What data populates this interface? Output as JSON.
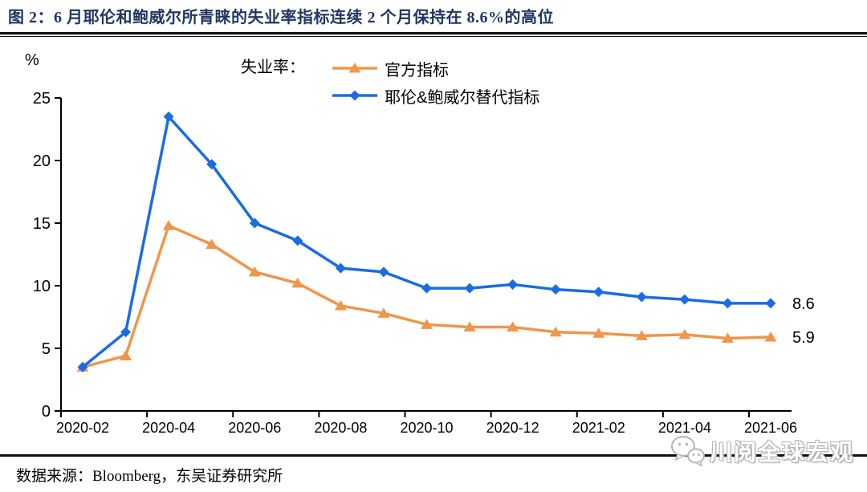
{
  "title": "图 2：6 月耶伦和鲍威尔所青睐的失业率指标连续 2 个月保持在 8.6%的高位",
  "source_note": "数据来源：Bloomberg，东吴证券研究所",
  "watermark": {
    "icon": "wechat-icon",
    "text": "川阅全球宏观"
  },
  "colors": {
    "title": "#1F3864",
    "official": "#F0964B",
    "alternative": "#1A6CE4",
    "axis": "#000000",
    "watermark_outline": "#B5B5B5"
  },
  "chart_data": {
    "type": "line",
    "title": "失业率：",
    "unit_label": "%",
    "x": [
      "2020-02",
      "2020-03",
      "2020-04",
      "2020-05",
      "2020-06",
      "2020-07",
      "2020-08",
      "2020-09",
      "2020-10",
      "2020-11",
      "2020-12",
      "2021-01",
      "2021-02",
      "2021-03",
      "2021-04",
      "2021-05",
      "2021-06"
    ],
    "x_tick_labels": [
      "2020-02",
      "2020-04",
      "2020-06",
      "2020-08",
      "2020-10",
      "2020-12",
      "2021-02",
      "2021-04",
      "2021-06"
    ],
    "ylim": [
      0,
      25
    ],
    "yticks": [
      0,
      5,
      10,
      15,
      20,
      25
    ],
    "grid": false,
    "legend_position": "top",
    "series": [
      {
        "name": "官方指标",
        "color": "#F0964B",
        "marker": "triangle",
        "values": [
          3.5,
          4.4,
          14.8,
          13.3,
          11.1,
          10.2,
          8.4,
          7.8,
          6.9,
          6.7,
          6.7,
          6.3,
          6.2,
          6.0,
          6.1,
          5.8,
          5.9
        ],
        "end_label": "5.9"
      },
      {
        "name": "耶伦&鲍威尔替代指标",
        "color": "#1A6CE4",
        "marker": "diamond",
        "values": [
          3.5,
          6.3,
          23.5,
          19.7,
          15.0,
          13.6,
          11.4,
          11.1,
          9.8,
          9.8,
          10.1,
          9.7,
          9.5,
          9.1,
          8.9,
          8.6,
          8.6
        ],
        "end_label": "8.6"
      }
    ]
  }
}
